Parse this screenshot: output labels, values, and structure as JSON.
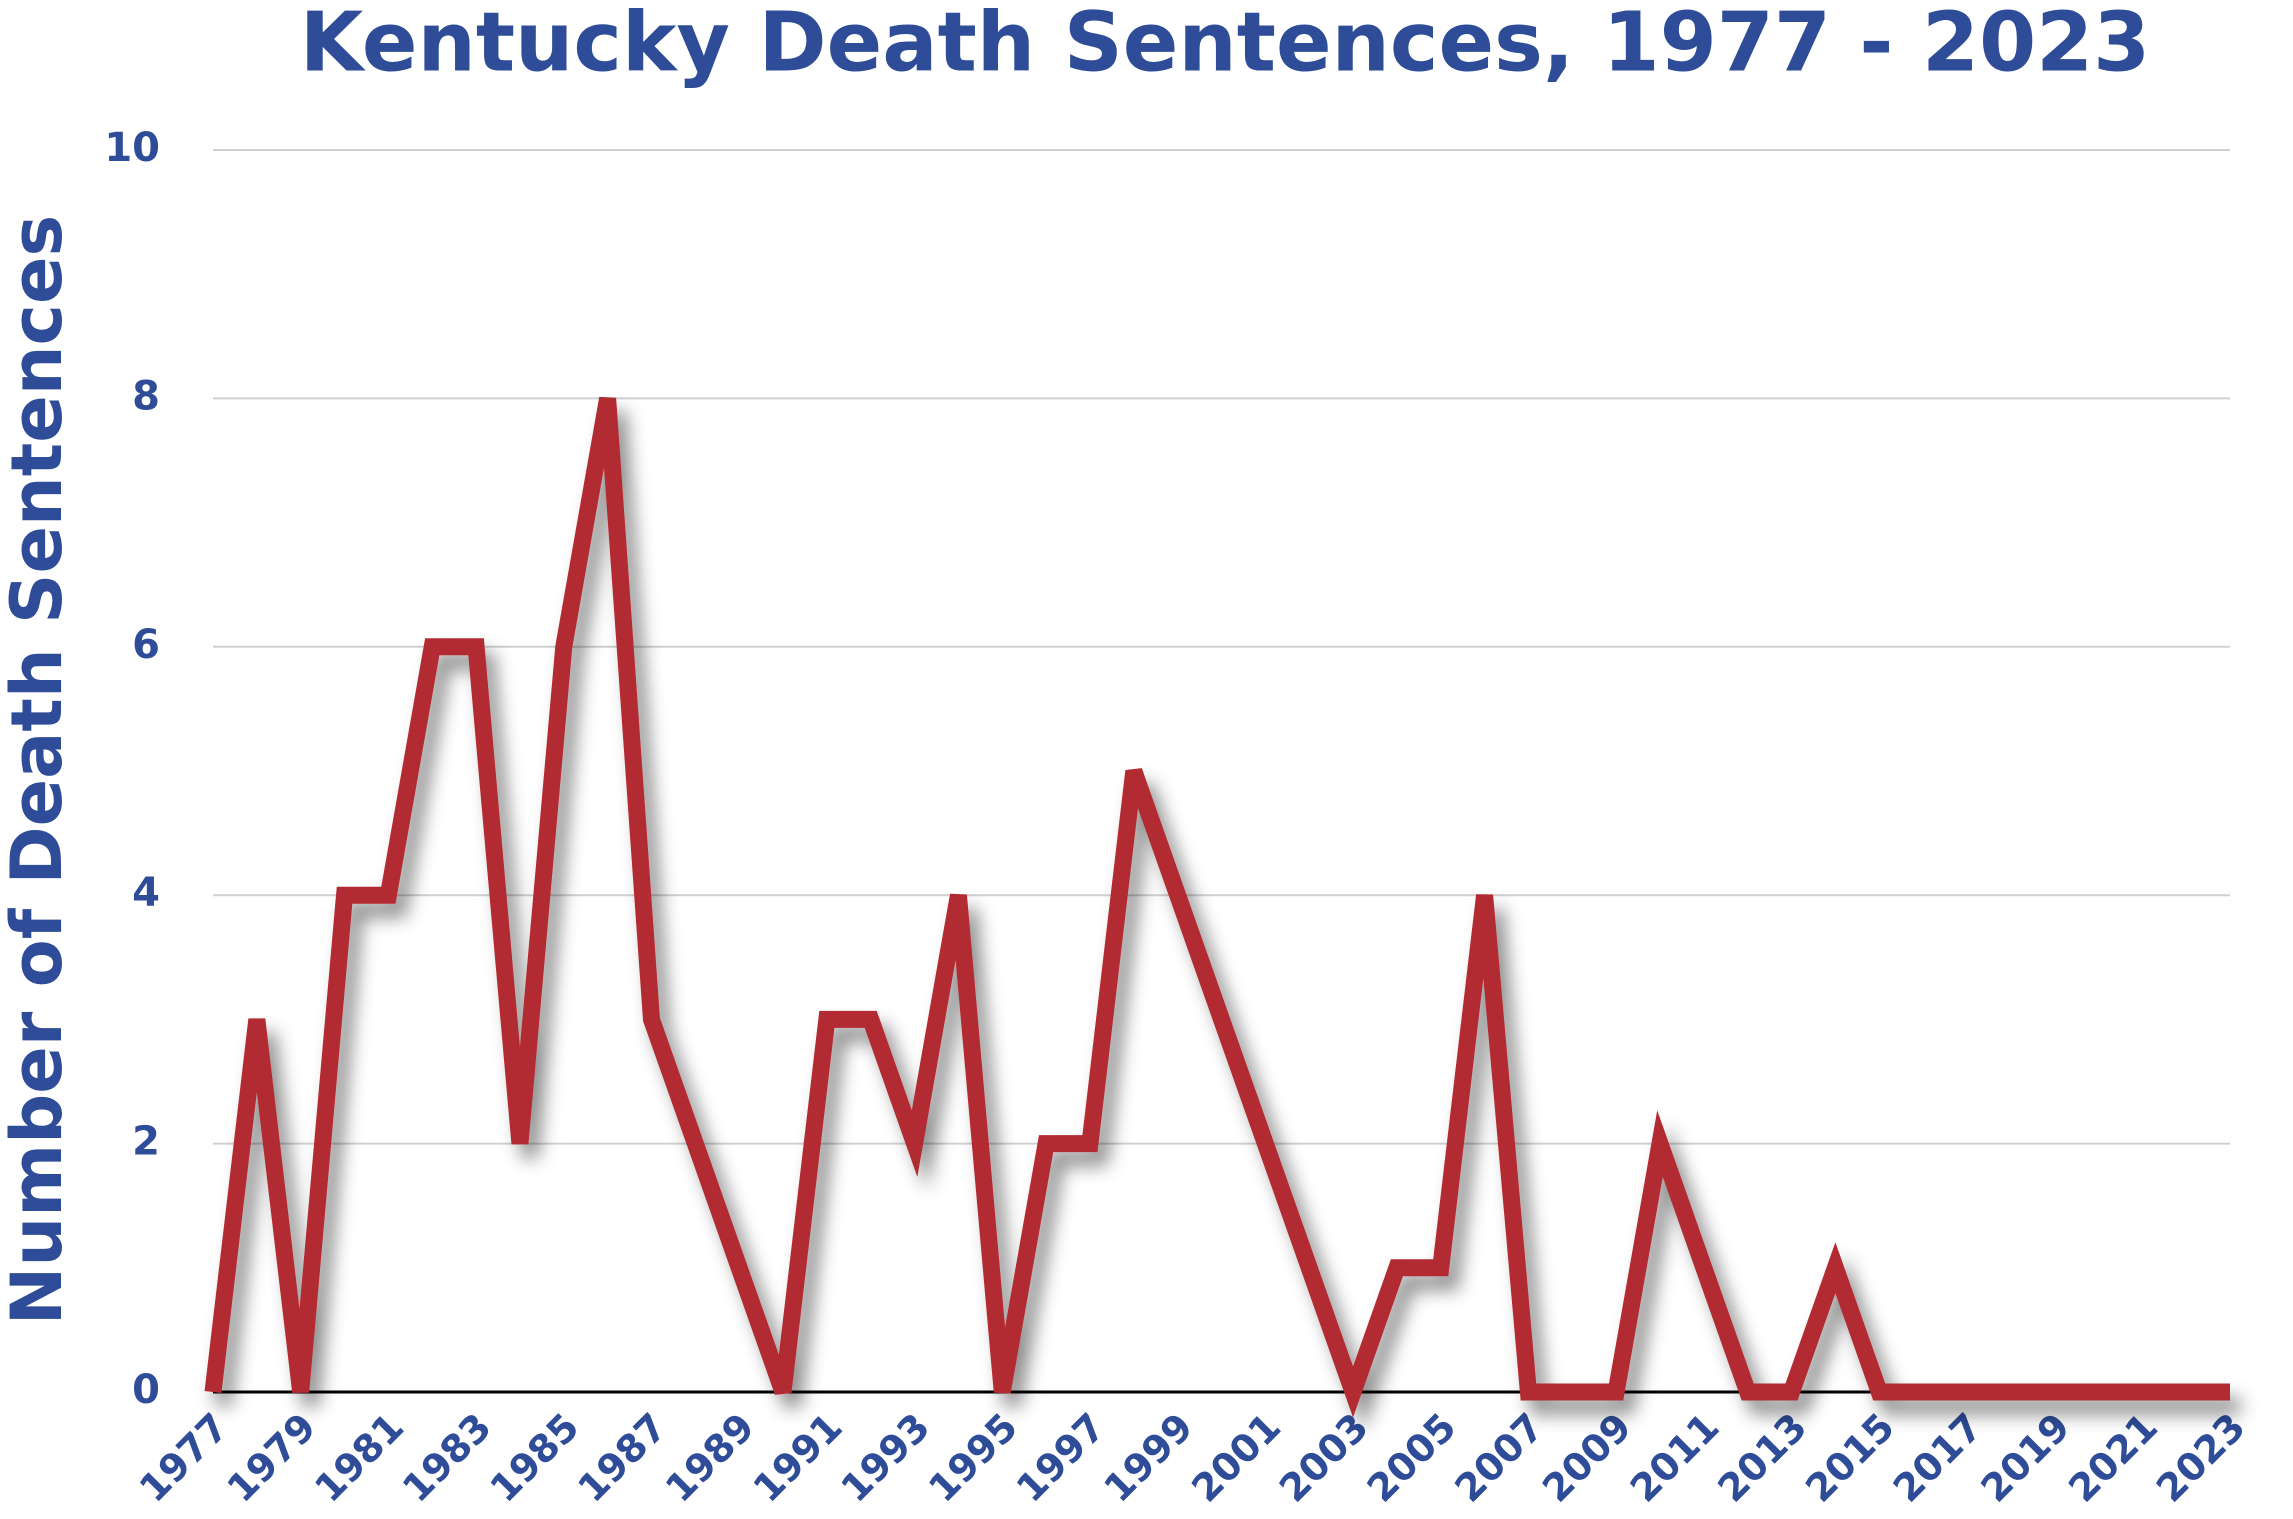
{
  "chart_data": {
    "type": "line",
    "title": "Kentucky Death Sentences, 1977 - 2023",
    "y_label": "Number of Death Sentences",
    "categories": [
      "1977",
      null,
      "1979",
      null,
      "1981",
      null,
      "1983",
      null,
      "1985",
      null,
      "1987",
      null,
      "1989",
      null,
      "1991",
      null,
      "1993",
      null,
      "1995",
      null,
      "1997",
      null,
      "1999",
      null,
      "2001",
      null,
      "2003",
      null,
      "2005",
      null,
      "2007",
      null,
      "2009",
      null,
      "2011",
      null,
      "2013",
      null,
      "2015",
      null,
      "2017",
      null,
      "2019",
      null,
      "2021",
      null,
      "2023"
    ],
    "series": [
      {
        "name": "Death Sentences",
        "color": "#b22a30",
        "values": [
          0,
          3,
          0,
          4,
          4,
          6,
          6,
          2,
          6,
          8,
          3,
          2,
          1,
          0,
          3,
          3,
          2,
          4,
          0,
          2,
          2,
          5,
          4,
          3,
          2,
          1,
          0,
          1,
          1,
          4,
          0,
          0,
          0,
          2,
          1,
          0,
          0,
          1,
          0,
          0,
          0,
          0,
          0,
          0,
          0,
          0,
          0
        ]
      }
    ],
    "ylim": [
      0,
      10
    ],
    "yticks": [
      0,
      2,
      4,
      6,
      8,
      10
    ],
    "grid": true
  }
}
